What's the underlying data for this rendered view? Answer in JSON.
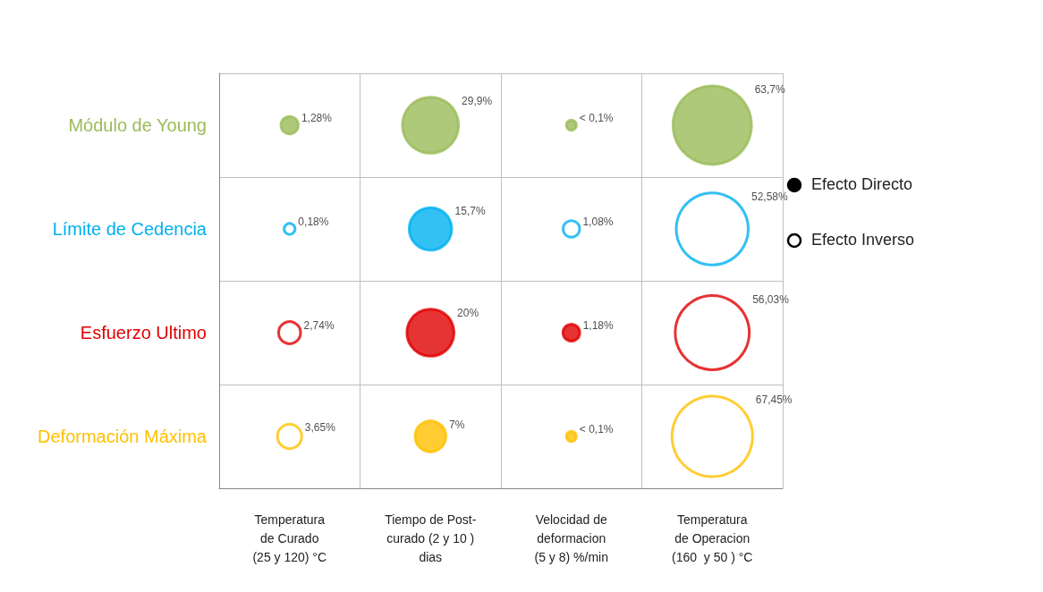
{
  "chart_data": {
    "type": "other",
    "categories": [
      "Temperatura\nde Curado\n(25 y 120) °C",
      "Tiempo de Post-\ncurado (2 y 10 )\ndias",
      "Velocidad de\ndeformacion\n(5 y 8) %/min",
      "Temperatura\nde Operacion\n(160  y 50 ) °C"
    ],
    "series": [
      {
        "name": "Módulo de Young",
        "color": "#9bbb59",
        "values": [
          1.28,
          29.9,
          0.1,
          63.7
        ],
        "value_labels": [
          "1,28%",
          "29,9%",
          "< 0,1%",
          "63,7%"
        ],
        "colors": [
          "#9bbb59",
          "#9bbb59",
          "#9bbb59",
          "#9bbb59"
        ]
      },
      {
        "name": "Límite de Cedencia",
        "color": "#00b0f0",
        "values": [
          0.18,
          15.7,
          1.08,
          52.58
        ],
        "value_labels": [
          "0,18%",
          "15,7%",
          "1,08%",
          "52,58%"
        ],
        "colors": [
          "#ffffff",
          "#00b0f0",
          "#ffffff",
          "#ffffff"
        ]
      },
      {
        "name": "Esfuerzo Ultimo",
        "color": "#e00000",
        "values": [
          2.74,
          20,
          1.18,
          56.03
        ],
        "value_labels": [
          "2,74%",
          "20%",
          "1,18%",
          "56,03%"
        ],
        "colors": [
          "#ffffff",
          "#e00000",
          "#e00000",
          "#ffffff"
        ]
      },
      {
        "name": "Deformación Máxima",
        "color": "#ffc000",
        "values": [
          3.65,
          7,
          0.1,
          67.45
        ],
        "value_labels": [
          "3,65%",
          "7%",
          "< 0,1%",
          "67,45%"
        ],
        "colors": [
          "#ffffff",
          "#ffc000",
          "#ffc000",
          "#ffffff"
        ]
      }
    ],
    "annotations": [
      "Efecto Directo",
      "Efecto Inverso"
    ]
  }
}
